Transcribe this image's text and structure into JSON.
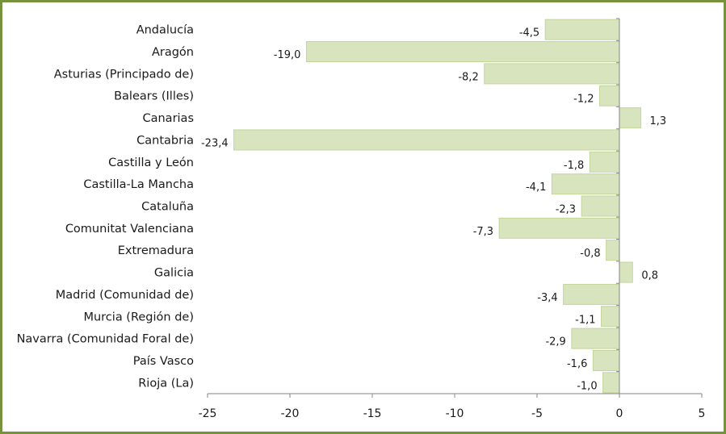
{
  "chart_data": {
    "type": "bar",
    "orientation": "horizontal",
    "categories": [
      "Andalucía",
      "Aragón",
      "Asturias (Principado de)",
      "Balears (Illes)",
      "Canarias",
      "Cantabria",
      "Castilla y León",
      "Castilla-La Mancha",
      "Cataluña",
      "Comunitat Valenciana",
      "Extremadura",
      "Galicia",
      "Madrid (Comunidad de)",
      "Murcia (Región de)",
      "Navarra (Comunidad Foral de)",
      "País Vasco",
      "Rioja (La)"
    ],
    "values": [
      -4.5,
      -19.0,
      -8.2,
      -1.2,
      1.3,
      -23.4,
      -1.8,
      -4.1,
      -2.3,
      -7.3,
      -0.8,
      0.8,
      -3.4,
      -1.1,
      -2.9,
      -1.6,
      -1.0
    ],
    "value_labels": [
      "-4,5",
      "-19,0",
      "-8,2",
      "-1,2",
      "1,3",
      "-23,4",
      "-1,8",
      "-4,1",
      "-2,3",
      "-7,3",
      "-0,8",
      "0,8",
      "-3,4",
      "-1,1",
      "-2,9",
      "-1,6",
      "-1,0"
    ],
    "xlim": [
      -25,
      5
    ],
    "x_ticks": [
      -25,
      -20,
      -15,
      -10,
      -5,
      0,
      5
    ],
    "x_tick_labels": [
      "-25",
      "-20",
      "-15",
      "-10",
      "-5",
      "0",
      "5"
    ],
    "grid": false,
    "legend": "none",
    "title": "",
    "xlabel": "",
    "ylabel": "",
    "colors": {
      "bar_fill": "#d7e4bd",
      "bar_stroke": "#c3d69b",
      "axis": "#868686",
      "frame": "#76923c"
    }
  }
}
